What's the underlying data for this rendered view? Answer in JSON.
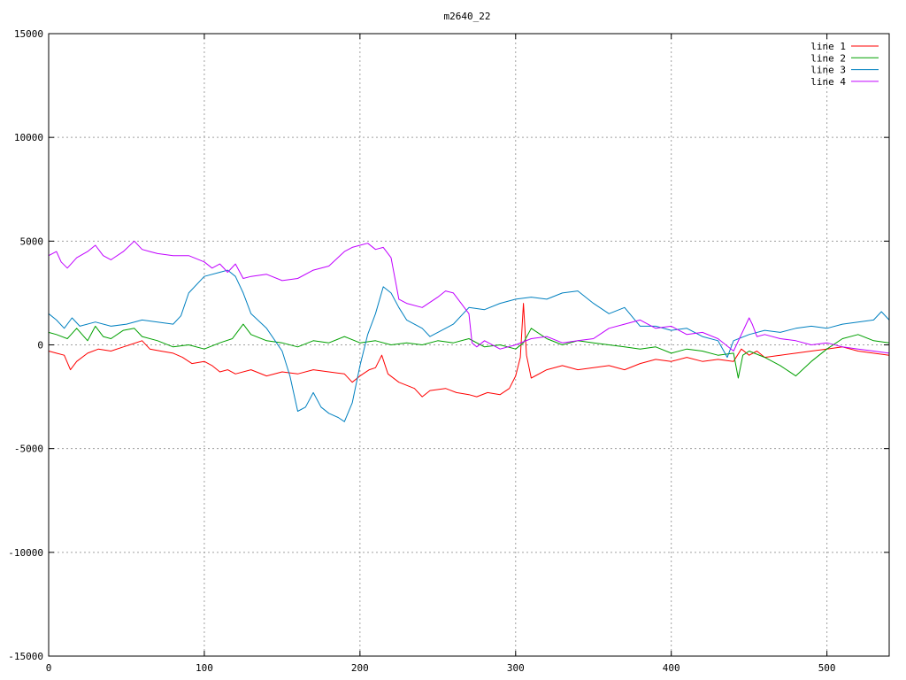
{
  "chart_data": {
    "type": "line",
    "title": "m2640_22",
    "xlabel": "",
    "ylabel": "",
    "xlim": [
      0,
      540
    ],
    "ylim": [
      -15000,
      15000
    ],
    "xticks": [
      0,
      100,
      200,
      300,
      400,
      500
    ],
    "yticks": [
      -15000,
      -10000,
      -5000,
      0,
      5000,
      10000,
      15000
    ],
    "grid": true,
    "legend_position": "top-right",
    "series": [
      {
        "name": "line 1",
        "color": "#ff0000",
        "x": [
          0,
          5,
          10,
          14,
          18,
          25,
          32,
          40,
          48,
          52,
          60,
          65,
          72,
          80,
          86,
          92,
          100,
          105,
          110,
          115,
          120,
          130,
          140,
          150,
          160,
          170,
          180,
          190,
          195,
          200,
          206,
          210,
          214,
          218,
          225,
          235,
          240,
          245,
          255,
          262,
          270,
          275,
          282,
          290,
          296,
          300,
          303,
          305,
          307,
          310,
          320,
          330,
          340,
          350,
          360,
          370,
          380,
          390,
          400,
          410,
          420,
          430,
          440,
          445,
          450,
          455,
          460,
          470,
          480,
          490,
          500,
          510,
          520,
          530,
          540
        ],
        "y": [
          -300,
          -400,
          -500,
          -1200,
          -800,
          -400,
          -200,
          -300,
          -100,
          0,
          200,
          -200,
          -300,
          -400,
          -600,
          -900,
          -800,
          -1000,
          -1300,
          -1200,
          -1400,
          -1200,
          -1500,
          -1300,
          -1400,
          -1200,
          -1300,
          -1400,
          -1800,
          -1500,
          -1200,
          -1100,
          -500,
          -1400,
          -1800,
          -2100,
          -2500,
          -2200,
          -2100,
          -2300,
          -2400,
          -2500,
          -2300,
          -2400,
          -2100,
          -1500,
          -600,
          2000,
          -500,
          -1600,
          -1200,
          -1000,
          -1200,
          -1100,
          -1000,
          -1200,
          -900,
          -700,
          -800,
          -600,
          -800,
          -700,
          -800,
          -200,
          -500,
          -300,
          -600,
          -500,
          -400,
          -300,
          -200,
          -100,
          -300,
          -400,
          -500
        ]
      },
      {
        "name": "line 2",
        "color": "#00a000",
        "x": [
          0,
          5,
          12,
          18,
          25,
          30,
          35,
          40,
          48,
          55,
          60,
          70,
          80,
          90,
          100,
          110,
          118,
          125,
          130,
          140,
          150,
          160,
          170,
          180,
          190,
          200,
          210,
          220,
          230,
          240,
          250,
          260,
          270,
          280,
          290,
          300,
          305,
          310,
          320,
          330,
          340,
          350,
          360,
          370,
          380,
          390,
          400,
          410,
          420,
          430,
          440,
          443,
          446,
          450,
          460,
          470,
          480,
          490,
          500,
          510,
          520,
          530,
          540
        ],
        "y": [
          600,
          500,
          300,
          800,
          200,
          900,
          400,
          300,
          700,
          800,
          400,
          200,
          -100,
          0,
          -200,
          100,
          300,
          1000,
          500,
          200,
          100,
          -100,
          200,
          100,
          400,
          100,
          200,
          0,
          100,
          0,
          200,
          100,
          300,
          -100,
          0,
          -200,
          100,
          800,
          300,
          0,
          200,
          100,
          0,
          -100,
          -200,
          -100,
          -400,
          -200,
          -300,
          -500,
          -400,
          -1600,
          -500,
          -300,
          -600,
          -1000,
          -1500,
          -800,
          -200,
          300,
          500,
          200,
          100
        ]
      },
      {
        "name": "line 3",
        "color": "#0080c0",
        "x": [
          0,
          5,
          10,
          15,
          20,
          30,
          40,
          50,
          60,
          70,
          80,
          85,
          90,
          100,
          110,
          115,
          120,
          125,
          130,
          140,
          150,
          155,
          160,
          165,
          170,
          175,
          180,
          186,
          190,
          195,
          200,
          205,
          210,
          215,
          220,
          225,
          230,
          240,
          245,
          250,
          260,
          270,
          280,
          290,
          300,
          310,
          320,
          330,
          340,
          350,
          360,
          370,
          380,
          390,
          400,
          410,
          420,
          430,
          433,
          436,
          440,
          450,
          460,
          470,
          480,
          490,
          500,
          510,
          520,
          530,
          535,
          540
        ],
        "y": [
          1500,
          1200,
          800,
          1300,
          900,
          1100,
          900,
          1000,
          1200,
          1100,
          1000,
          1400,
          2500,
          3300,
          3500,
          3600,
          3300,
          2500,
          1500,
          800,
          -300,
          -1500,
          -3200,
          -3000,
          -2300,
          -3000,
          -3300,
          -3500,
          -3700,
          -2800,
          -1000,
          500,
          1500,
          2800,
          2500,
          1800,
          1200,
          800,
          400,
          600,
          1000,
          1800,
          1700,
          2000,
          2200,
          2300,
          2200,
          2500,
          2600,
          2000,
          1500,
          1800,
          900,
          900,
          700,
          800,
          400,
          200,
          -200,
          -600,
          200,
          500,
          700,
          600,
          800,
          900,
          800,
          1000,
          1100,
          1200,
          1600,
          1200
        ]
      },
      {
        "name": "line 4",
        "color": "#c000ff",
        "x": [
          0,
          5,
          8,
          12,
          18,
          25,
          30,
          35,
          40,
          48,
          55,
          60,
          65,
          70,
          80,
          90,
          100,
          105,
          110,
          115,
          120,
          125,
          130,
          140,
          150,
          160,
          170,
          180,
          190,
          195,
          200,
          205,
          210,
          215,
          220,
          223,
          225,
          230,
          240,
          250,
          255,
          260,
          265,
          270,
          272,
          275,
          280,
          290,
          300,
          310,
          320,
          330,
          340,
          350,
          360,
          370,
          380,
          390,
          400,
          410,
          420,
          430,
          440,
          450,
          452,
          455,
          460,
          470,
          480,
          490,
          500,
          510,
          520,
          530,
          540
        ],
        "y": [
          4300,
          4500,
          4000,
          3700,
          4200,
          4500,
          4800,
          4300,
          4100,
          4500,
          5000,
          4600,
          4500,
          4400,
          4300,
          4300,
          4000,
          3700,
          3900,
          3500,
          3900,
          3200,
          3300,
          3400,
          3100,
          3200,
          3600,
          3800,
          4500,
          4700,
          4800,
          4900,
          4600,
          4700,
          4200,
          3000,
          2200,
          2000,
          1800,
          2300,
          2600,
          2500,
          2000,
          1500,
          100,
          -100,
          200,
          -200,
          0,
          300,
          400,
          100,
          200,
          300,
          800,
          1000,
          1200,
          800,
          900,
          500,
          600,
          300,
          -300,
          1300,
          1000,
          400,
          500,
          300,
          200,
          0,
          100,
          -100,
          -200,
          -300,
          -400
        ]
      }
    ]
  }
}
